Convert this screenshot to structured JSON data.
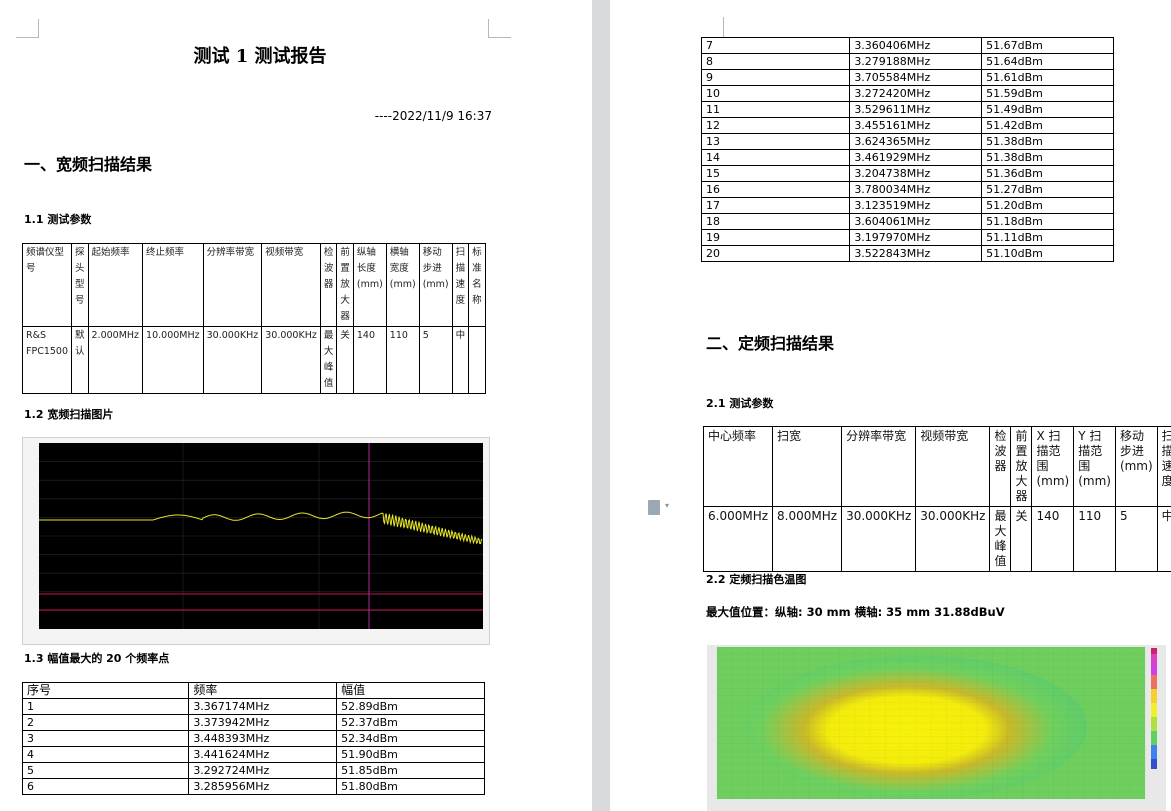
{
  "left_page": {
    "title": "测试 1 测试报告",
    "dateline": "----2022/11/9 16:37",
    "section1_heading": "一、宽频扫描结果",
    "sub_1_1": "1.1 测试参数",
    "params_table": {
      "headers": [
        "频谱仪型号",
        "探头型号",
        "起始频率",
        "终止频率",
        "分辨率带宽",
        "视频带宽",
        "检波器",
        "前置放大器",
        "纵轴长度(mm)",
        "横轴宽度(mm)",
        "移动步进(mm)",
        "扫描速度",
        "标准名称"
      ],
      "values": [
        "R&S FPC1500",
        "默认",
        "2.000MHz",
        "10.000MHz",
        "30.000KHz",
        "30.000KHz",
        "最大峰值",
        "关",
        "140",
        "110",
        "5",
        "中",
        ""
      ]
    },
    "sub_1_2": "1.2 宽频扫描图片",
    "sub_1_3": "1.3 幅值最大的 20 个频率点",
    "top_table_headers": [
      "序号",
      "频率",
      "幅值"
    ],
    "top_rows": [
      [
        "1",
        "3.367174MHz",
        "52.89dBm"
      ],
      [
        "2",
        "3.373942MHz",
        "52.37dBm"
      ],
      [
        "3",
        "3.448393MHz",
        "52.34dBm"
      ],
      [
        "4",
        "3.441624MHz",
        "51.90dBm"
      ],
      [
        "5",
        "3.292724MHz",
        "51.85dBm"
      ],
      [
        "6",
        "3.285956MHz",
        "51.80dBm"
      ]
    ]
  },
  "right_page": {
    "top_rows": [
      [
        "7",
        "3.360406MHz",
        "51.67dBm"
      ],
      [
        "8",
        "3.279188MHz",
        "51.64dBm"
      ],
      [
        "9",
        "3.705584MHz",
        "51.61dBm"
      ],
      [
        "10",
        "3.272420MHz",
        "51.59dBm"
      ],
      [
        "11",
        "3.529611MHz",
        "51.49dBm"
      ],
      [
        "12",
        "3.455161MHz",
        "51.42dBm"
      ],
      [
        "13",
        "3.624365MHz",
        "51.38dBm"
      ],
      [
        "14",
        "3.461929MHz",
        "51.38dBm"
      ],
      [
        "15",
        "3.204738MHz",
        "51.36dBm"
      ],
      [
        "16",
        "3.780034MHz",
        "51.27dBm"
      ],
      [
        "17",
        "3.123519MHz",
        "51.20dBm"
      ],
      [
        "18",
        "3.604061MHz",
        "51.18dBm"
      ],
      [
        "19",
        "3.197970MHz",
        "51.11dBm"
      ],
      [
        "20",
        "3.522843MHz",
        "51.10dBm"
      ]
    ],
    "section2_heading": "二、定频扫描结果",
    "sub_2_1": "2.1 测试参数",
    "fixed_table": {
      "headers": [
        "中心频率",
        "扫宽",
        "分辨率带宽",
        "视频带宽",
        "检波器",
        "前置放大器",
        "X 扫描范围(mm)",
        "Y 扫描范围(mm)",
        "移动步进(mm)",
        "扫描速度"
      ],
      "values": [
        "6.000MHz",
        "8.000MHz",
        "30.000KHz",
        "30.000KHz",
        "最大峰值",
        "关",
        "140",
        "110",
        "5",
        "中"
      ]
    },
    "sub_2_2": "2.2 定频扫描色温图",
    "max_pos": "最大值位置：纵轴: 30 mm   横轴: 35 mm   31.88dBuV"
  },
  "colors": {
    "gutter": "#d9dadb",
    "plot_bg": "#000000",
    "trace": "#e6e62a",
    "limit_line": "#c0134f",
    "heat_low": "#5fd068",
    "heat_high": "#f7f20a"
  },
  "chart_data": {
    "type": "line",
    "title": "",
    "xlabel": "",
    "ylabel": "",
    "series": [
      {
        "name": "",
        "shape": "flat near upper-middle level, small ripples, rising oscillation peak near ~4 MHz, then dense oscillating decline toward 10 MHz"
      }
    ]
  }
}
